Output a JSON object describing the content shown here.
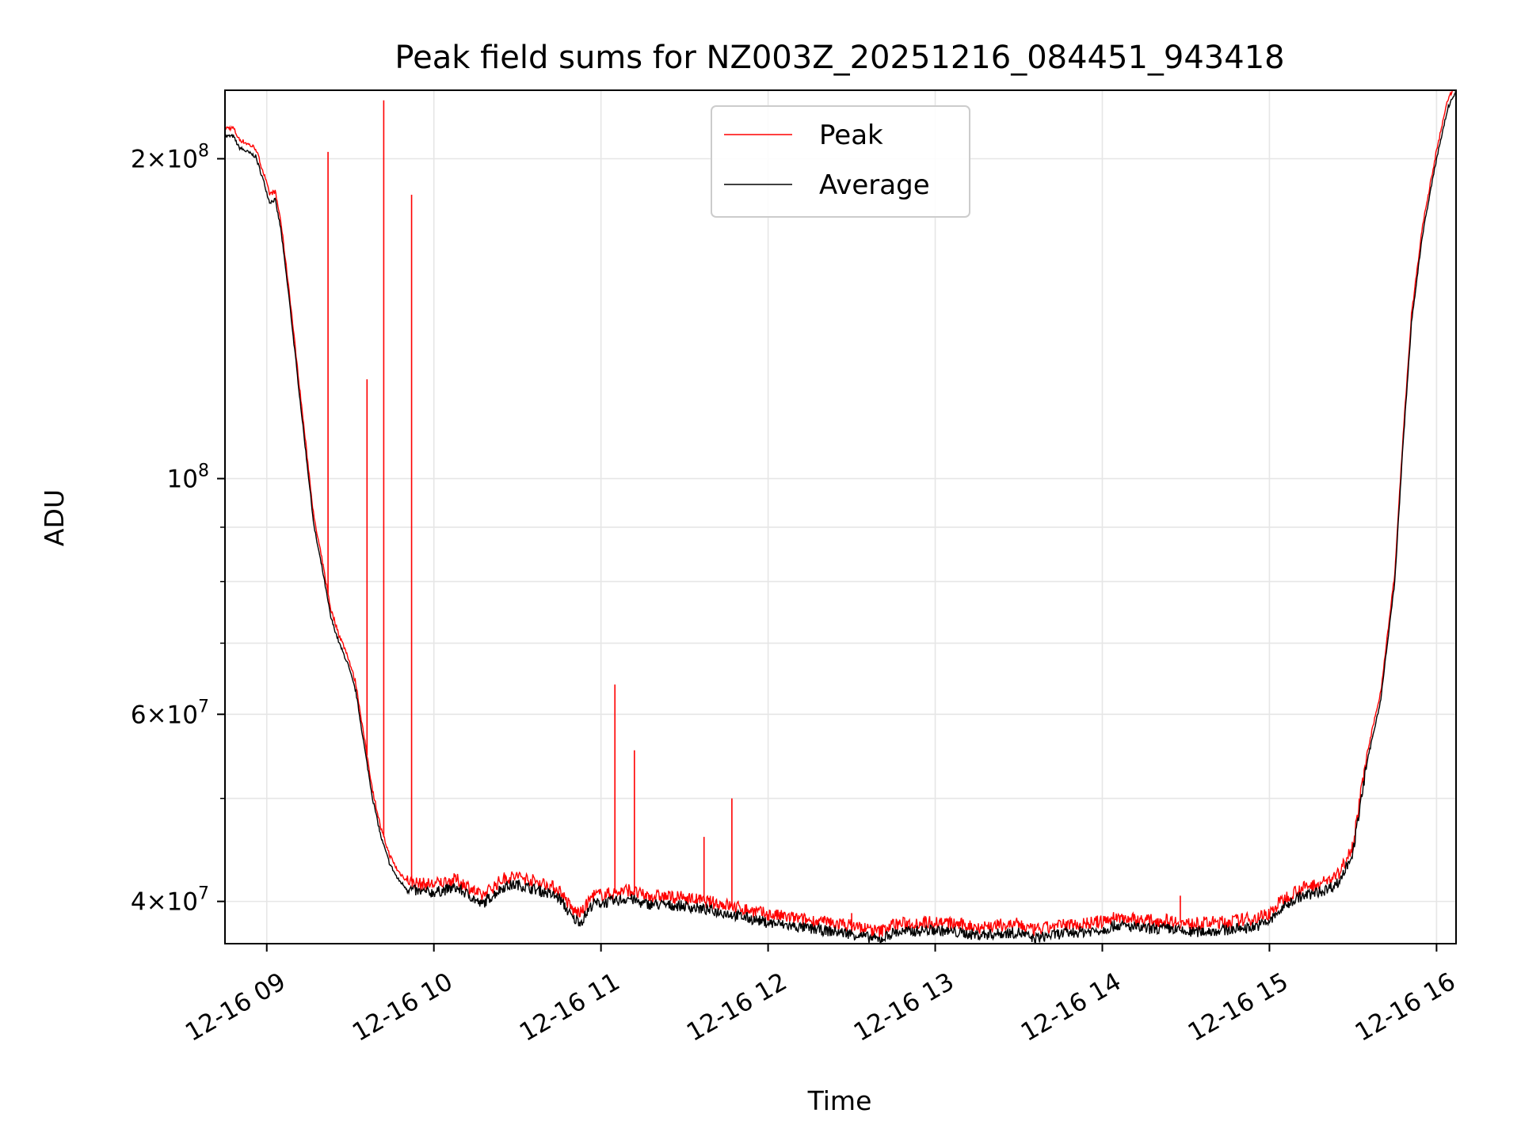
{
  "chart_data": {
    "type": "line",
    "title": "Peak field sums for NZ003Z_20251216_084451_943418",
    "xlabel": "Time",
    "ylabel": "ADU",
    "y_scale": "log",
    "xlim": [
      "2025-12-16 08:45",
      "2025-12-16 16:07"
    ],
    "ylim": [
      36500000,
      232000000
    ],
    "grid": true,
    "legend": "upper center",
    "x_ticks": [
      {
        "t": "2025-12-16 09:00",
        "label": "12-16 09"
      },
      {
        "t": "2025-12-16 10:00",
        "label": "12-16 10"
      },
      {
        "t": "2025-12-16 11:00",
        "label": "12-16 11"
      },
      {
        "t": "2025-12-16 12:00",
        "label": "12-16 12"
      },
      {
        "t": "2025-12-16 13:00",
        "label": "12-16 13"
      },
      {
        "t": "2025-12-16 14:00",
        "label": "12-16 14"
      },
      {
        "t": "2025-12-16 15:00",
        "label": "12-16 15"
      },
      {
        "t": "2025-12-16 16:00",
        "label": "12-16 16"
      }
    ],
    "y_ticks_major": [
      {
        "value": 40000000,
        "mantissa": "4",
        "exp": "7"
      },
      {
        "value": 60000000,
        "mantissa": "6",
        "exp": "7"
      },
      {
        "value": 100000000,
        "mantissa": "",
        "exp": "8"
      },
      {
        "value": 200000000,
        "mantissa": "2",
        "exp": "8"
      }
    ],
    "y_ticks_minor": [
      50000000,
      70000000,
      80000000,
      90000000
    ],
    "series": [
      {
        "name": "Average",
        "color": "#000000",
        "points": [
          [
            "2025-12-16 08:45",
            210000000
          ],
          [
            "2025-12-16 08:48",
            210000000
          ],
          [
            "2025-12-16 08:50",
            205000000
          ],
          [
            "2025-12-16 08:53",
            203000000
          ],
          [
            "2025-12-16 08:56",
            201000000
          ],
          [
            "2025-12-16 08:59",
            190000000
          ],
          [
            "2025-12-16 09:01",
            182000000
          ],
          [
            "2025-12-16 09:03",
            183000000
          ],
          [
            "2025-12-16 09:05",
            172000000
          ],
          [
            "2025-12-16 09:08",
            148000000
          ],
          [
            "2025-12-16 09:11",
            125000000
          ],
          [
            "2025-12-16 09:14",
            106000000
          ],
          [
            "2025-12-16 09:17",
            90000000
          ],
          [
            "2025-12-16 09:20",
            82000000
          ],
          [
            "2025-12-16 09:23",
            74000000
          ],
          [
            "2025-12-16 09:26",
            70000000
          ],
          [
            "2025-12-16 09:29",
            67000000
          ],
          [
            "2025-12-16 09:32",
            63000000
          ],
          [
            "2025-12-16 09:35",
            56000000
          ],
          [
            "2025-12-16 09:38",
            50000000
          ],
          [
            "2025-12-16 09:41",
            46000000
          ],
          [
            "2025-12-16 09:44",
            43500000
          ],
          [
            "2025-12-16 09:47",
            42000000
          ],
          [
            "2025-12-16 09:50",
            41200000
          ],
          [
            "2025-12-16 09:55",
            40800000
          ],
          [
            "2025-12-16 10:00",
            40800000
          ],
          [
            "2025-12-16 10:08",
            41200000
          ],
          [
            "2025-12-16 10:13",
            40500000
          ],
          [
            "2025-12-16 10:17",
            39700000
          ],
          [
            "2025-12-16 10:20",
            40300000
          ],
          [
            "2025-12-16 10:25",
            41300000
          ],
          [
            "2025-12-16 10:30",
            41500000
          ],
          [
            "2025-12-16 10:40",
            40800000
          ],
          [
            "2025-12-16 10:45",
            40300000
          ],
          [
            "2025-12-16 10:50",
            38500000
          ],
          [
            "2025-12-16 10:53",
            38300000
          ],
          [
            "2025-12-16 10:57",
            39800000
          ],
          [
            "2025-12-16 11:05",
            40000000
          ],
          [
            "2025-12-16 11:10",
            40300000
          ],
          [
            "2025-12-16 11:15",
            39800000
          ],
          [
            "2025-12-16 11:30",
            39600000
          ],
          [
            "2025-12-16 11:45",
            39000000
          ],
          [
            "2025-12-16 12:00",
            38200000
          ],
          [
            "2025-12-16 12:15",
            37700000
          ],
          [
            "2025-12-16 12:30",
            37300000
          ],
          [
            "2025-12-16 12:40",
            36800000
          ],
          [
            "2025-12-16 12:45",
            37400000
          ],
          [
            "2025-12-16 13:00",
            37600000
          ],
          [
            "2025-12-16 13:15",
            37200000
          ],
          [
            "2025-12-16 13:30",
            37400000
          ],
          [
            "2025-12-16 13:35",
            36900000
          ],
          [
            "2025-12-16 13:45",
            37300000
          ],
          [
            "2025-12-16 14:00",
            37600000
          ],
          [
            "2025-12-16 14:05",
            38000000
          ],
          [
            "2025-12-16 14:15",
            37700000
          ],
          [
            "2025-12-16 14:25",
            37700000
          ],
          [
            "2025-12-16 14:30",
            37400000
          ],
          [
            "2025-12-16 14:45",
            37600000
          ],
          [
            "2025-12-16 14:55",
            37900000
          ],
          [
            "2025-12-16 15:00",
            38300000
          ],
          [
            "2025-12-16 15:05",
            39500000
          ],
          [
            "2025-12-16 15:10",
            40300000
          ],
          [
            "2025-12-16 15:20",
            41000000
          ],
          [
            "2025-12-16 15:25",
            41700000
          ],
          [
            "2025-12-16 15:30",
            44500000
          ],
          [
            "2025-12-16 15:35",
            54000000
          ],
          [
            "2025-12-16 15:40",
            62000000
          ],
          [
            "2025-12-16 15:45",
            80000000
          ],
          [
            "2025-12-16 15:48",
            108000000
          ],
          [
            "2025-12-16 15:51",
            140000000
          ],
          [
            "2025-12-16 15:55",
            170000000
          ],
          [
            "2025-12-16 16:00",
            200000000
          ],
          [
            "2025-12-16 16:04",
            223000000
          ],
          [
            "2025-12-16 16:07",
            232000000
          ]
        ]
      },
      {
        "name": "Peak",
        "color": "#ff0000",
        "offset_ratio": 1.018,
        "spikes": [
          [
            "2025-12-16 09:22",
            203000000
          ],
          [
            "2025-12-16 09:36",
            124000000
          ],
          [
            "2025-12-16 09:42",
            227000000
          ],
          [
            "2025-12-16 09:52",
            185000000
          ],
          [
            "2025-12-16 11:05",
            64000000
          ],
          [
            "2025-12-16 11:12",
            55500000
          ],
          [
            "2025-12-16 11:37",
            46000000
          ],
          [
            "2025-12-16 11:47",
            50000000
          ],
          [
            "2025-12-16 14:28",
            40500000
          ],
          [
            "2025-12-16 12:30",
            39000000
          ]
        ]
      }
    ]
  }
}
